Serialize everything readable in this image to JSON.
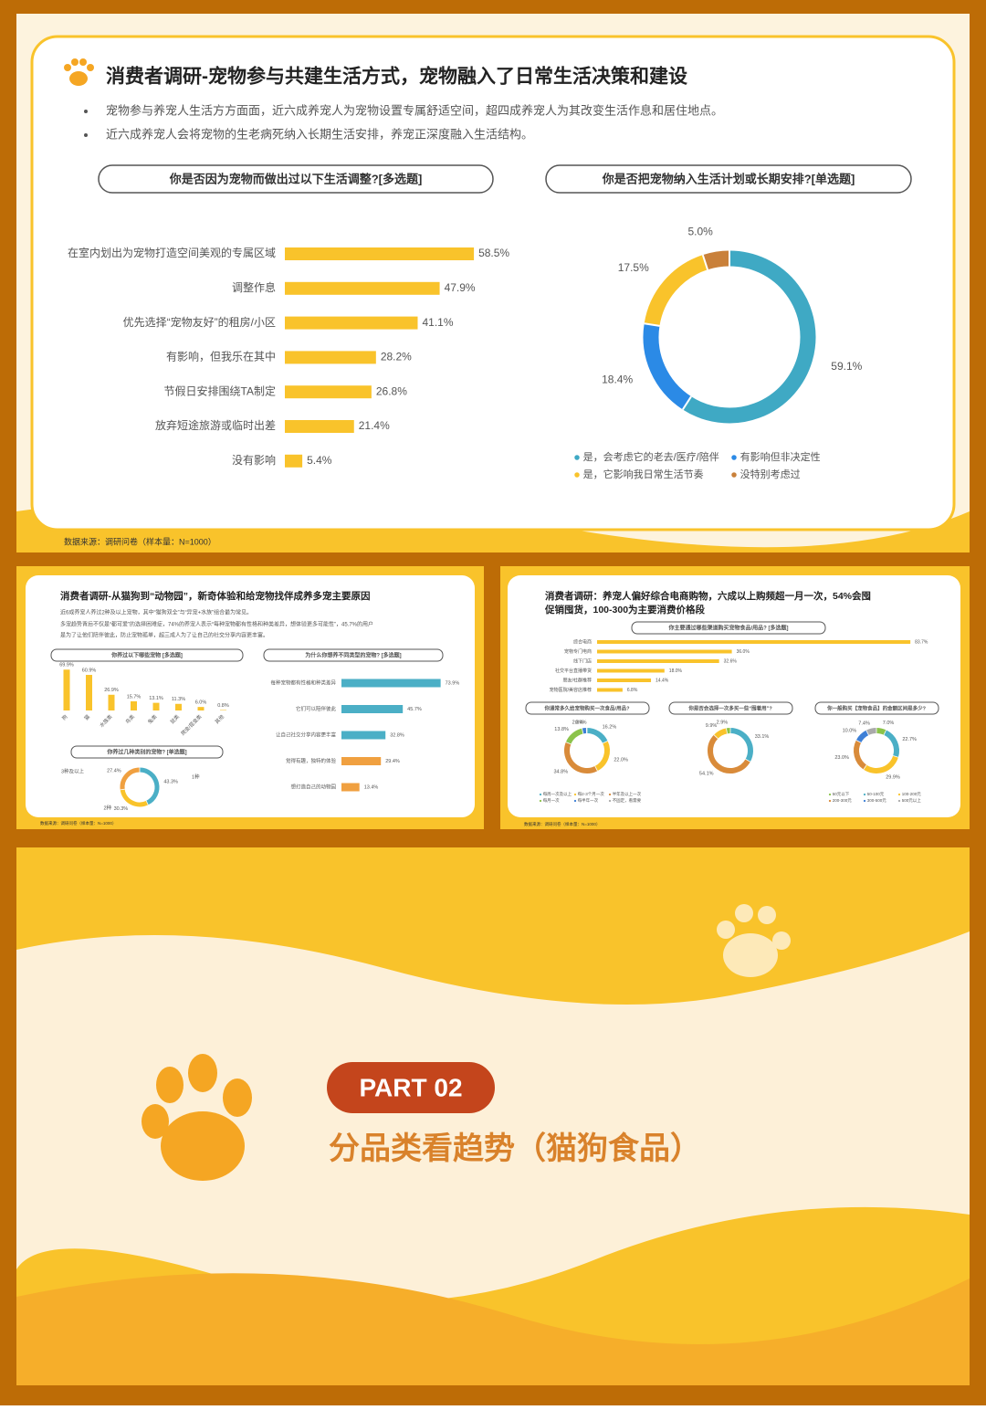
{
  "slide1": {
    "title": "消费者调研-宠物参与共建生活方式，宠物融入了日常生活决策和建设",
    "bullets": [
      "宠物参与养宠人生活方方面面，近六成养宠人为宠物设置专属舒适空间，超四成养宠人为其改变生活作息和居住地点。",
      "近六成养宠人会将宠物的生老病死纳入长期生活安排，养宠正深度融入生活结构。"
    ],
    "bar_chart": {
      "type": "bar",
      "title": "你是否因为宠物而做出过以下生活调整?[多选题]",
      "categories": [
        "在室内划出为宠物打造空间美观的专属区域",
        "调整作息",
        "优先选择“宠物友好”的租房/小区",
        "有影响，但我乐在其中",
        "节假日安排围绕TA制定",
        "放弃短途旅游或临时出差",
        "没有影响"
      ],
      "values": [
        58.5,
        47.9,
        41.1,
        28.2,
        26.8,
        21.4,
        5.4
      ],
      "value_labels": [
        "58.5%",
        "47.9%",
        "41.1%",
        "28.2%",
        "26.8%",
        "21.4%",
        "5.4%"
      ],
      "color": "#f9c32b"
    },
    "donut_chart": {
      "type": "pie",
      "title": "你是否把宠物纳入生活计划或长期安排?[单选题]",
      "categories": [
        "是，会考虑它的老去/医疗/陪伴",
        "有影响但非决定性",
        "是，它影响我日常生活节奏",
        "没特别考虑过"
      ],
      "values": [
        59.1,
        18.4,
        17.5,
        5.0
      ],
      "value_labels": [
        "59.1%",
        "18.4%",
        "17.5%",
        "5.0%"
      ],
      "colors": [
        "#3fa9c4",
        "#2b8ae6",
        "#f9c32b",
        "#c9803a"
      ]
    },
    "source": "数据来源：调研问卷（样本量：N=1000）"
  },
  "slide2": {
    "title": "消费者调研-从猫狗到“动物园”，新奇体验和给宠物找伴成养多宠主要原因",
    "bullets": [
      "近6成养宠人养过2种及以上宠物，其中“猫狗双全”与“异宠+水族”组合最为常见。",
      "多宠趋势背后不仅是“都可爱”的选择困难症，74%的养宠人表示“每种宠物都有性格和种类差异，想体验更多可能性”，45.7%的用户",
      "是为了让他们陪伴彼此，防止宠物孤单，超三成人为了让自己的社交分享内容更丰富。"
    ],
    "bar_chart": {
      "type": "bar",
      "title": "你养过以下哪些宠物 [多选题]",
      "categories": [
        "狗",
        "猫",
        "水族类",
        "鸟类",
        "兔类",
        "鼠类",
        "爬虫/昆虫类",
        "其他"
      ],
      "values": [
        69.9,
        60.9,
        26.9,
        15.7,
        13.1,
        11.3,
        6.0,
        0.8
      ],
      "value_labels": [
        "69.9%",
        "60.9%",
        "26.9%",
        "15.7%",
        "13.1%",
        "11.3%",
        "6.0%",
        "0.8%"
      ],
      "color": "#f9c32b"
    },
    "hbar_chart": {
      "type": "bar",
      "title": "为什么你想养不同类型的宠物? [多选题]",
      "categories": [
        "每种宠物都有性格和种类差异",
        "它们可以陪伴彼此",
        "让自己社交分享内容更丰富",
        "觉得有趣，独特的体验",
        "想打造自己的动物园"
      ],
      "values": [
        73.9,
        45.7,
        32.8,
        29.4,
        13.4
      ],
      "value_labels": [
        "73.9%",
        "45.7%",
        "32.8%",
        "29.4%",
        "13.4%"
      ],
      "colors": [
        "#4bafc6",
        "#4bafc6",
        "#4bafc6",
        "#f0a040",
        "#f0a040"
      ]
    },
    "donut_chart": {
      "type": "pie",
      "title": "你养过几种类别的宠物? [单选题]",
      "categories": [
        "1种",
        "2种",
        "3种及以上"
      ],
      "values": [
        43.3,
        30.3,
        27.4
      ],
      "value_labels": [
        "43.3%",
        "30.3%",
        "27.4%"
      ],
      "colors": [
        "#4bafc6",
        "#f9c32b",
        "#f0a040"
      ]
    },
    "source": "数据来源：调研问卷（样本量：N=1000）"
  },
  "slide3": {
    "title_lines": [
      "消费者调研：养宠人偏好综合电商购物，六成以上购频超一月一次，54%会囤",
      "促销囤货，100-300为主要消费价格段"
    ],
    "bar_chart": {
      "type": "bar",
      "title": "你主要通过哪些渠道购买宠物食品/用品? [多选题]",
      "categories": [
        "综合电商",
        "宠物专门电商",
        "线下门店",
        "社交平台直播带货",
        "朋友/社群推荐",
        "宠物医院/美容店推荐"
      ],
      "values": [
        83.7,
        36.0,
        32.6,
        18.0,
        14.4,
        6.8
      ],
      "value_labels": [
        "83.7%",
        "36.0%",
        "32.6%",
        "18.0%",
        "14.4%",
        "6.8%"
      ],
      "color": "#f9c32b"
    },
    "donuts": [
      {
        "type": "pie",
        "title": "你通常多久给宠物购买一次食品/用品?",
        "categories": [
          "每周一次及以上",
          "每2-3个月一次",
          "半年及以上一次",
          "每月一次",
          "每半年一次",
          "不固定，看需要"
        ],
        "values": [
          16.2,
          22.0,
          34.8,
          13.8,
          2.8,
          0.4
        ],
        "value_labels": [
          "16.2%",
          "22.0%",
          "34.8%",
          "13.8%",
          "2.8%",
          "0.4%"
        ],
        "colors": [
          "#4bafc6",
          "#f9c32b",
          "#d98b3a",
          "#8bc34a",
          "#3d7fd6",
          "#aaaaaa"
        ]
      },
      {
        "type": "pie",
        "title": "你是否会选择一次多买一些“囤着用”?",
        "values": [
          33.1,
          54.1,
          9.9,
          2.9
        ],
        "value_labels": [
          "33.1%",
          "54.1%",
          "9.9%",
          "2.9%"
        ],
        "colors": [
          "#4bafc6",
          "#d98b3a",
          "#f9c32b",
          "#8bc34a"
        ]
      },
      {
        "type": "pie",
        "title": "你一般购买【宠物食品】的金额区间是多少?",
        "categories": [
          "50元以下",
          "50-100元",
          "100-200元",
          "200-300元",
          "300-500元",
          "500元以上"
        ],
        "values": [
          7.0,
          22.7,
          29.9,
          23.0,
          10.0,
          7.4
        ],
        "value_labels": [
          "7.0%",
          "22.7%",
          "29.9%",
          "23.0%",
          "10.0%",
          "7.4%"
        ],
        "colors": [
          "#8bc34a",
          "#4bafc6",
          "#f9c32b",
          "#d98b3a",
          "#3d7fd6",
          "#aaaaaa"
        ]
      }
    ],
    "source": "数据来源：调研问卷（样本量：N=1000）"
  },
  "cover": {
    "tag": "PART 02",
    "subtitle": "分品类看趋势（猫狗食品）"
  }
}
